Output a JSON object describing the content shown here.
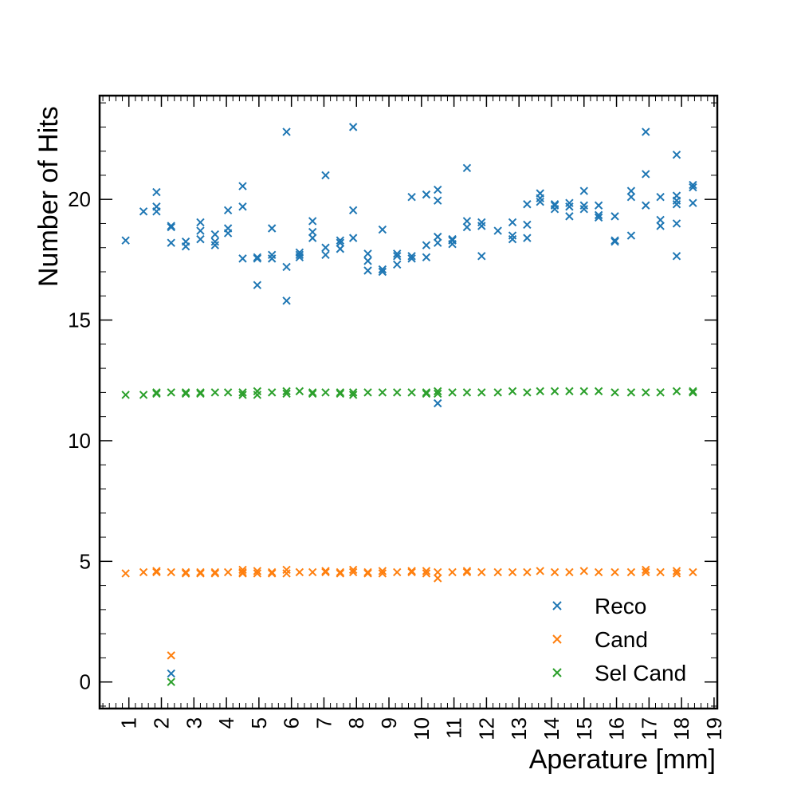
{
  "chart_data": {
    "type": "scatter",
    "xlabel": "Aperature [mm]",
    "ylabel": "Number of Hits",
    "xlim": [
      0.1,
      19.1
    ],
    "ylim": [
      -1.1,
      24.3
    ],
    "x_ticks": [
      1,
      2,
      3,
      4,
      5,
      6,
      7,
      8,
      9,
      10,
      11,
      12,
      13,
      14,
      15,
      16,
      17,
      18,
      19
    ],
    "y_ticks": [
      0,
      5,
      10,
      15,
      20
    ],
    "grid": false,
    "marker": "x",
    "legend_position": "bottom-right",
    "series": [
      {
        "name": "Reco",
        "color": "#1f77b4",
        "points": [
          [
            0.9,
            18.3
          ],
          [
            1.45,
            19.5
          ],
          [
            1.85,
            20.3
          ],
          [
            1.85,
            19.7
          ],
          [
            1.85,
            19.5
          ],
          [
            2.3,
            18.9
          ],
          [
            2.3,
            18.85
          ],
          [
            2.3,
            18.2
          ],
          [
            2.3,
            0.35
          ],
          [
            2.75,
            18.25
          ],
          [
            2.75,
            18.05
          ],
          [
            3.2,
            19.05
          ],
          [
            3.2,
            18.7
          ],
          [
            3.2,
            18.35
          ],
          [
            3.65,
            18.55
          ],
          [
            3.65,
            18.25
          ],
          [
            3.65,
            18.1
          ],
          [
            4.05,
            19.55
          ],
          [
            4.05,
            18.8
          ],
          [
            4.05,
            18.6
          ],
          [
            4.5,
            20.55
          ],
          [
            4.5,
            19.7
          ],
          [
            4.5,
            17.55
          ],
          [
            4.95,
            17.6
          ],
          [
            4.95,
            17.55
          ],
          [
            4.95,
            16.45
          ],
          [
            5.4,
            18.8
          ],
          [
            5.4,
            17.7
          ],
          [
            5.4,
            17.55
          ],
          [
            5.85,
            22.8
          ],
          [
            5.85,
            17.2
          ],
          [
            5.85,
            15.8
          ],
          [
            6.25,
            17.8
          ],
          [
            6.25,
            17.7
          ],
          [
            6.25,
            17.6
          ],
          [
            6.65,
            19.1
          ],
          [
            6.65,
            18.65
          ],
          [
            6.65,
            18.4
          ],
          [
            7.05,
            21.0
          ],
          [
            7.05,
            18.0
          ],
          [
            7.05,
            17.7
          ],
          [
            7.5,
            18.3
          ],
          [
            7.5,
            18.2
          ],
          [
            7.5,
            17.95
          ],
          [
            7.9,
            23.0
          ],
          [
            7.9,
            19.55
          ],
          [
            7.9,
            18.4
          ],
          [
            8.35,
            17.75
          ],
          [
            8.35,
            17.45
          ],
          [
            8.35,
            17.05
          ],
          [
            8.8,
            18.75
          ],
          [
            8.8,
            17.1
          ],
          [
            8.8,
            17.0
          ],
          [
            9.25,
            17.75
          ],
          [
            9.25,
            17.65
          ],
          [
            9.25,
            17.3
          ],
          [
            9.7,
            20.1
          ],
          [
            9.7,
            17.65
          ],
          [
            9.7,
            17.55
          ],
          [
            10.15,
            20.2
          ],
          [
            10.15,
            18.1
          ],
          [
            10.15,
            17.6
          ],
          [
            10.5,
            20.4
          ],
          [
            10.5,
            19.95
          ],
          [
            10.5,
            18.45
          ],
          [
            10.5,
            18.2
          ],
          [
            10.5,
            11.55
          ],
          [
            10.95,
            18.35
          ],
          [
            10.95,
            18.3
          ],
          [
            10.95,
            18.15
          ],
          [
            11.4,
            21.3
          ],
          [
            11.4,
            19.1
          ],
          [
            11.4,
            18.85
          ],
          [
            11.85,
            19.05
          ],
          [
            11.85,
            18.9
          ],
          [
            11.85,
            17.65
          ],
          [
            12.35,
            18.7
          ],
          [
            12.8,
            19.05
          ],
          [
            12.8,
            18.5
          ],
          [
            12.8,
            18.35
          ],
          [
            13.25,
            19.8
          ],
          [
            13.25,
            18.95
          ],
          [
            13.25,
            18.4
          ],
          [
            13.65,
            20.25
          ],
          [
            13.65,
            20.05
          ],
          [
            13.65,
            19.9
          ],
          [
            14.1,
            19.8
          ],
          [
            14.1,
            19.75
          ],
          [
            14.1,
            19.6
          ],
          [
            14.55,
            19.85
          ],
          [
            14.55,
            19.7
          ],
          [
            14.55,
            19.3
          ],
          [
            15.0,
            20.35
          ],
          [
            15.0,
            19.75
          ],
          [
            15.0,
            19.6
          ],
          [
            15.45,
            19.75
          ],
          [
            15.45,
            19.35
          ],
          [
            15.45,
            19.25
          ],
          [
            15.95,
            19.3
          ],
          [
            15.95,
            18.3
          ],
          [
            15.95,
            18.25
          ],
          [
            16.45,
            20.35
          ],
          [
            16.45,
            20.1
          ],
          [
            16.45,
            18.5
          ],
          [
            16.9,
            22.8
          ],
          [
            16.9,
            21.05
          ],
          [
            16.9,
            19.75
          ],
          [
            17.35,
            20.1
          ],
          [
            17.35,
            19.15
          ],
          [
            17.35,
            18.9
          ],
          [
            17.85,
            21.85
          ],
          [
            17.85,
            20.15
          ],
          [
            17.85,
            19.95
          ],
          [
            17.85,
            19.8
          ],
          [
            17.85,
            19.0
          ],
          [
            17.85,
            17.65
          ],
          [
            18.35,
            20.6
          ],
          [
            18.35,
            20.5
          ],
          [
            18.35,
            19.85
          ]
        ]
      },
      {
        "name": "Cand",
        "color": "#ff7f0e",
        "points": [
          [
            0.9,
            4.5
          ],
          [
            1.45,
            4.55
          ],
          [
            1.85,
            4.6
          ],
          [
            1.85,
            4.55
          ],
          [
            2.3,
            4.55
          ],
          [
            2.3,
            1.1
          ],
          [
            2.75,
            4.55
          ],
          [
            2.75,
            4.5
          ],
          [
            3.2,
            4.55
          ],
          [
            3.2,
            4.5
          ],
          [
            3.65,
            4.55
          ],
          [
            3.65,
            4.5
          ],
          [
            4.05,
            4.55
          ],
          [
            4.5,
            4.65
          ],
          [
            4.5,
            4.55
          ],
          [
            4.5,
            4.5
          ],
          [
            4.95,
            4.6
          ],
          [
            4.95,
            4.5
          ],
          [
            5.4,
            4.55
          ],
          [
            5.4,
            4.5
          ],
          [
            5.85,
            4.65
          ],
          [
            5.85,
            4.5
          ],
          [
            6.25,
            4.55
          ],
          [
            6.65,
            4.55
          ],
          [
            7.05,
            4.6
          ],
          [
            7.05,
            4.55
          ],
          [
            7.5,
            4.55
          ],
          [
            7.5,
            4.5
          ],
          [
            7.9,
            4.65
          ],
          [
            7.9,
            4.55
          ],
          [
            8.35,
            4.55
          ],
          [
            8.35,
            4.5
          ],
          [
            8.8,
            4.6
          ],
          [
            8.8,
            4.5
          ],
          [
            9.25,
            4.55
          ],
          [
            9.7,
            4.6
          ],
          [
            9.7,
            4.55
          ],
          [
            10.15,
            4.6
          ],
          [
            10.15,
            4.5
          ],
          [
            10.5,
            4.55
          ],
          [
            10.5,
            4.3
          ],
          [
            10.95,
            4.55
          ],
          [
            11.4,
            4.6
          ],
          [
            11.4,
            4.55
          ],
          [
            11.85,
            4.55
          ],
          [
            12.35,
            4.55
          ],
          [
            12.8,
            4.55
          ],
          [
            13.25,
            4.55
          ],
          [
            13.65,
            4.6
          ],
          [
            14.1,
            4.55
          ],
          [
            14.55,
            4.55
          ],
          [
            15.0,
            4.6
          ],
          [
            15.45,
            4.55
          ],
          [
            15.95,
            4.55
          ],
          [
            16.45,
            4.55
          ],
          [
            16.9,
            4.65
          ],
          [
            16.9,
            4.55
          ],
          [
            17.35,
            4.55
          ],
          [
            17.85,
            4.6
          ],
          [
            17.85,
            4.5
          ],
          [
            18.35,
            4.55
          ]
        ]
      },
      {
        "name": "Sel Cand",
        "color": "#2ca02c",
        "points": [
          [
            0.9,
            11.9
          ],
          [
            1.45,
            11.9
          ],
          [
            1.85,
            11.95
          ],
          [
            1.85,
            12.0
          ],
          [
            2.3,
            12.0
          ],
          [
            2.3,
            0.0
          ],
          [
            2.75,
            12.0
          ],
          [
            2.75,
            11.95
          ],
          [
            3.2,
            12.0
          ],
          [
            3.2,
            11.95
          ],
          [
            3.65,
            12.0
          ],
          [
            4.05,
            12.0
          ],
          [
            4.5,
            12.0
          ],
          [
            4.5,
            11.9
          ],
          [
            4.95,
            12.05
          ],
          [
            4.95,
            11.9
          ],
          [
            5.4,
            12.0
          ],
          [
            5.85,
            12.05
          ],
          [
            5.85,
            11.95
          ],
          [
            6.25,
            12.05
          ],
          [
            6.65,
            12.0
          ],
          [
            6.65,
            11.95
          ],
          [
            7.05,
            12.0
          ],
          [
            7.5,
            12.0
          ],
          [
            7.5,
            11.95
          ],
          [
            7.9,
            12.0
          ],
          [
            7.9,
            11.9
          ],
          [
            8.35,
            12.0
          ],
          [
            8.8,
            12.0
          ],
          [
            9.25,
            12.0
          ],
          [
            9.7,
            12.0
          ],
          [
            10.15,
            12.0
          ],
          [
            10.15,
            11.95
          ],
          [
            10.5,
            12.05
          ],
          [
            10.5,
            11.95
          ],
          [
            10.95,
            12.0
          ],
          [
            11.4,
            12.0
          ],
          [
            11.85,
            12.0
          ],
          [
            12.35,
            12.0
          ],
          [
            12.8,
            12.05
          ],
          [
            13.25,
            12.0
          ],
          [
            13.65,
            12.05
          ],
          [
            14.1,
            12.05
          ],
          [
            14.55,
            12.05
          ],
          [
            15.0,
            12.05
          ],
          [
            15.45,
            12.05
          ],
          [
            15.95,
            12.0
          ],
          [
            16.45,
            12.0
          ],
          [
            16.9,
            12.0
          ],
          [
            17.35,
            12.0
          ],
          [
            17.85,
            12.05
          ],
          [
            18.35,
            12.05
          ],
          [
            18.35,
            12.0
          ]
        ]
      }
    ]
  }
}
